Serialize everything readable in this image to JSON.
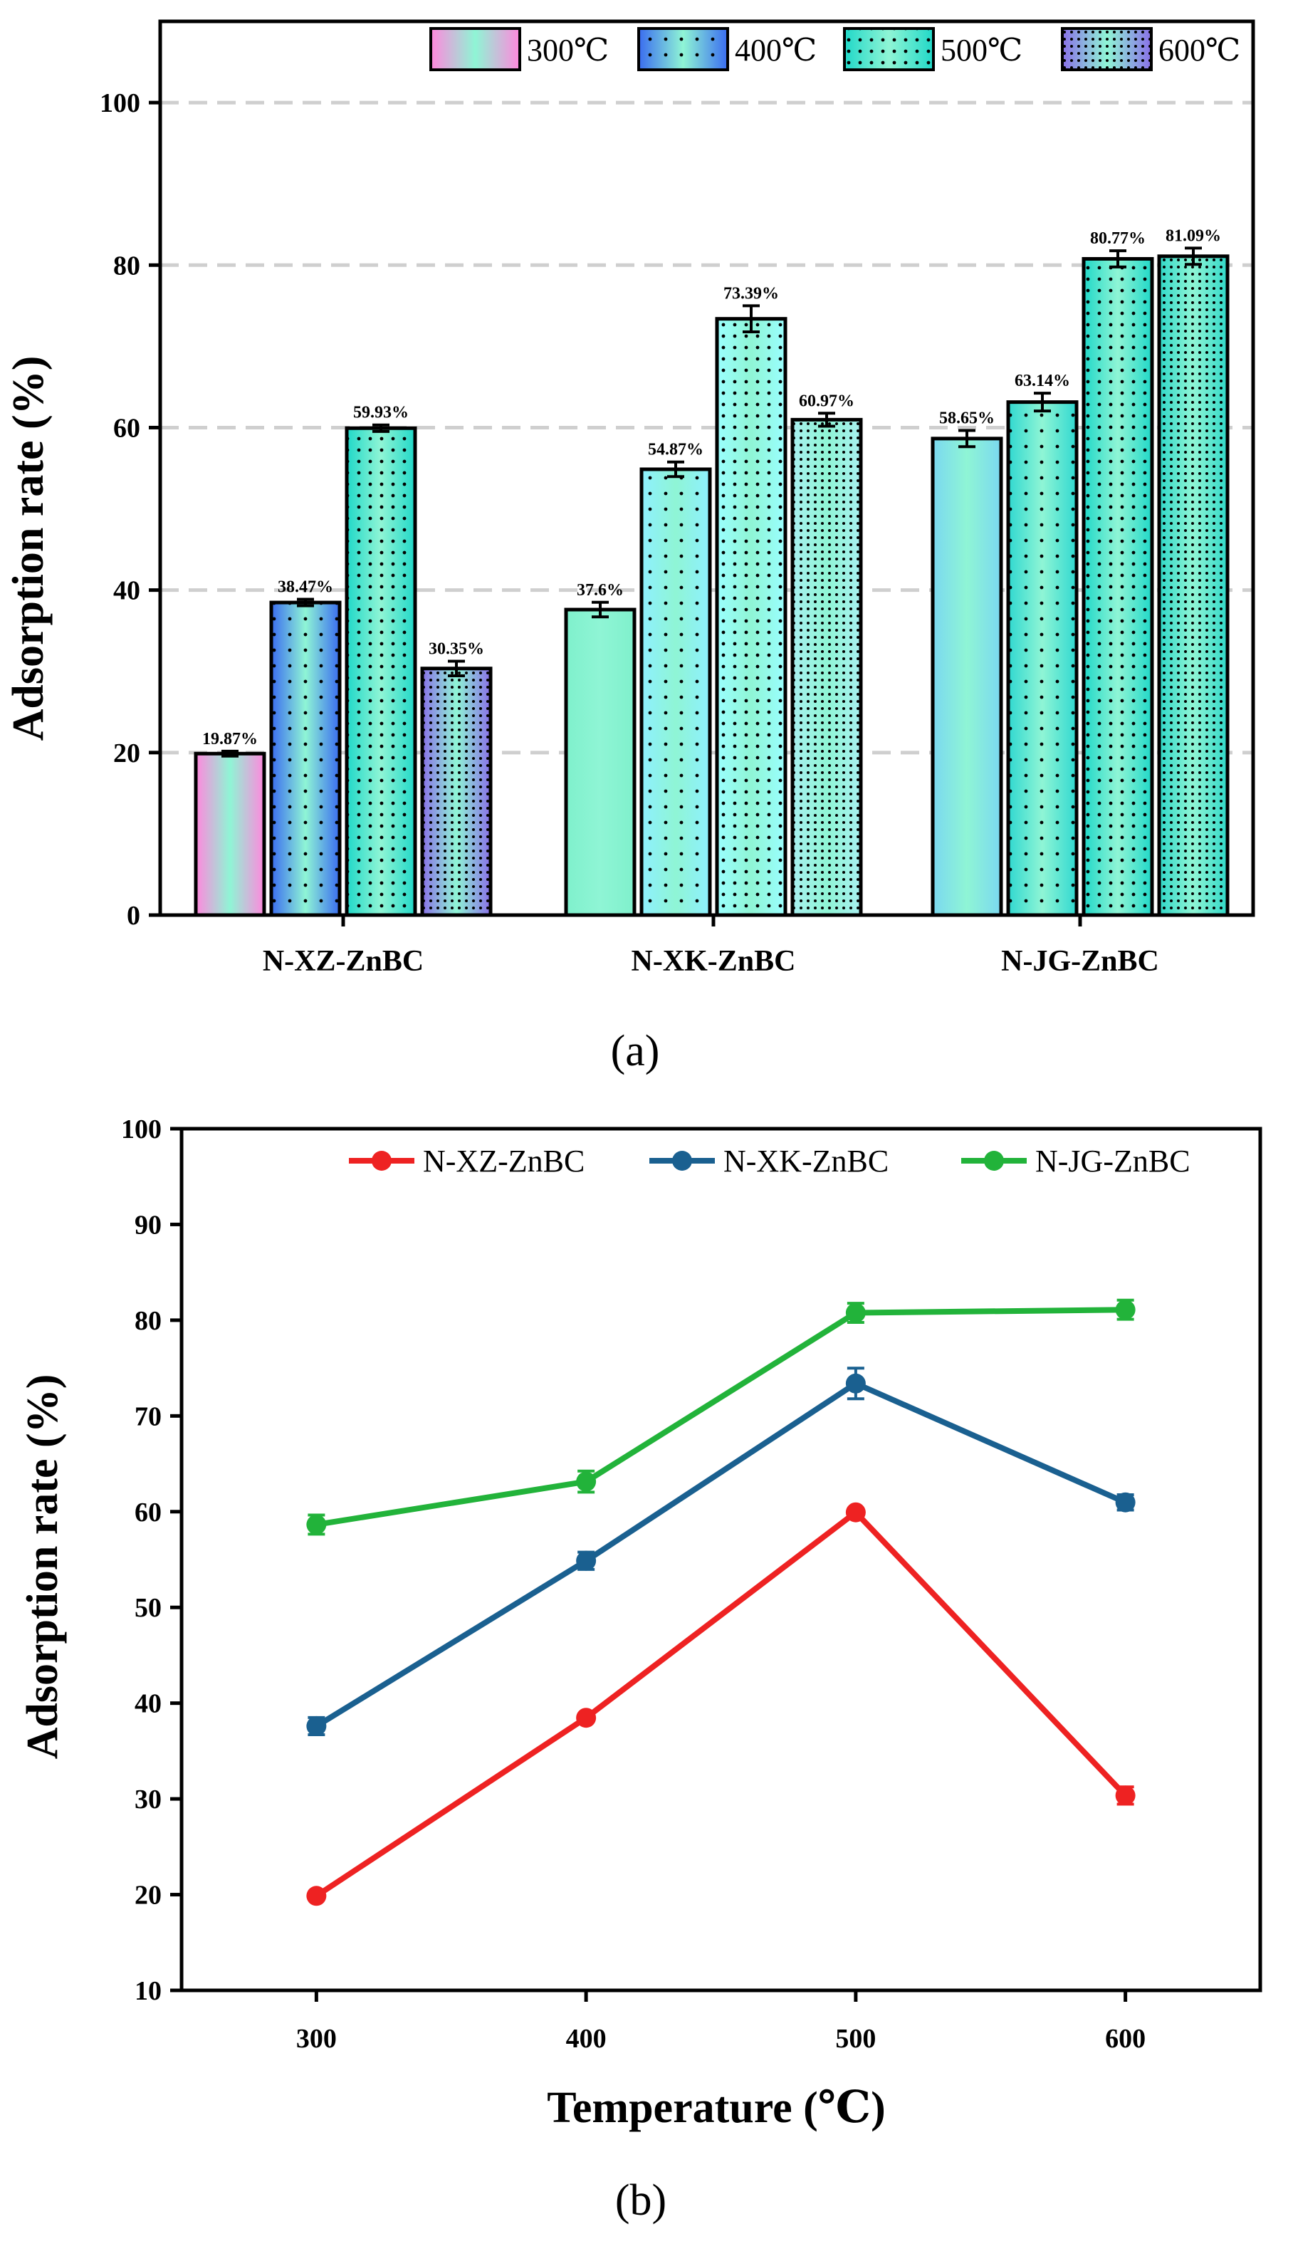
{
  "panels": {
    "a": "(a)",
    "b": "(b)"
  },
  "chart_data": [
    {
      "id": "a",
      "type": "bar",
      "title": "",
      "xlabel": "",
      "ylabel": "Adsorption rate (%)",
      "ylim": [
        0,
        110
      ],
      "yticks": [
        0,
        20,
        40,
        60,
        80,
        100
      ],
      "grid": "dashed horizontal at 20, 40, 60, 80, 100",
      "legend_position": "top-right",
      "categories": [
        "N-XZ-ZnBC",
        "N-XK-ZnBC",
        "N-JG-ZnBC"
      ],
      "series": [
        {
          "name": "300℃",
          "values": [
            19.87,
            37.6,
            58.65
          ],
          "errors": [
            0.3,
            0.9,
            1.0
          ],
          "labels": [
            "19.87%",
            "37.6%",
            "58.65%"
          ],
          "colors": [
            "#ff88dd",
            "#7ff0cc",
            "#7ad8f0"
          ],
          "pattern": "none"
        },
        {
          "name": "400℃",
          "values": [
            38.47,
            54.87,
            63.14
          ],
          "errors": [
            0.4,
            0.9,
            1.1
          ],
          "labels": [
            "38.47%",
            "54.87%",
            "63.14%"
          ],
          "colors": [
            "#3a6cf0",
            "#8ef0ff",
            "#30d8d0"
          ],
          "pattern": "sparse-dots"
        },
        {
          "name": "500℃",
          "values": [
            59.93,
            73.39,
            80.77
          ],
          "errors": [
            0.4,
            1.6,
            1.0
          ],
          "labels": [
            "59.93%",
            "73.39%",
            "80.77%"
          ],
          "colors": [
            "#20d8c8",
            "#9affff",
            "#20d8c8"
          ],
          "pattern": "dots"
        },
        {
          "name": "600℃",
          "values": [
            30.35,
            60.97,
            81.09
          ],
          "errors": [
            0.9,
            0.8,
            1.0
          ],
          "labels": [
            "30.35%",
            "60.97%",
            "81.09%"
          ],
          "colors": [
            "#8a70e8",
            "#a8f0f0",
            "#30d8c8"
          ],
          "pattern": "dense-dots"
        }
      ]
    },
    {
      "id": "b",
      "type": "line",
      "title": "",
      "xlabel": "Temperature (℃)",
      "ylabel": "Adsorption rate (%)",
      "x": [
        300,
        400,
        500,
        600
      ],
      "xlim": [
        250,
        650
      ],
      "ylim": [
        10,
        100
      ],
      "yticks": [
        10,
        20,
        30,
        40,
        50,
        60,
        70,
        80,
        90,
        100
      ],
      "grid": "off",
      "legend_position": "top",
      "series": [
        {
          "name": "N-XZ-ZnBC",
          "color": "#ee2222",
          "values": [
            19.87,
            38.47,
            59.93,
            30.35
          ],
          "errors": [
            0.3,
            0.4,
            0.4,
            0.9
          ]
        },
        {
          "name": "N-XK-ZnBC",
          "color": "#1a6090",
          "values": [
            37.6,
            54.87,
            73.39,
            60.97
          ],
          "errors": [
            0.9,
            0.9,
            1.6,
            0.8
          ]
        },
        {
          "name": "N-JG-ZnBC",
          "color": "#22b33a",
          "values": [
            58.65,
            63.14,
            80.77,
            81.09
          ],
          "errors": [
            1.0,
            1.1,
            1.0,
            1.0
          ]
        }
      ]
    }
  ]
}
